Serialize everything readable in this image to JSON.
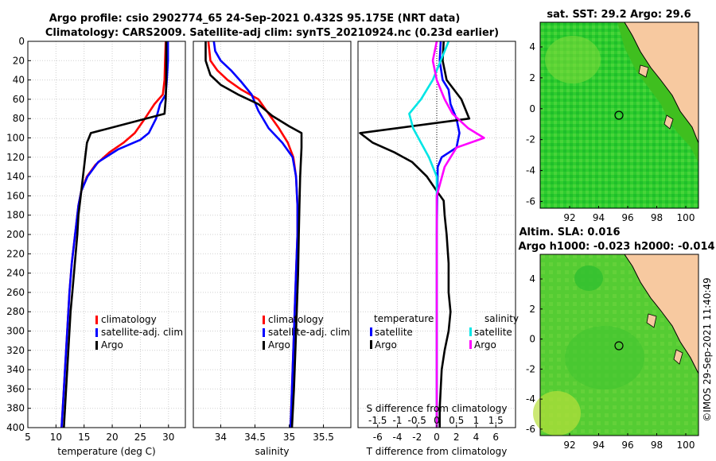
{
  "header": {
    "title_line1": "Argo profile: csio 2902774_65 24-Sep-2021 0.432S 95.175E (NRT data)",
    "title_line2": "Climatology: CARS2009. Satellite-adj clim: synTS_20210924.nc (0.23d earlier)"
  },
  "colors": {
    "climatology": "#ff0000",
    "satellite": "#0000ff",
    "argo": "#000000",
    "s_satellite": "#00e5e5",
    "s_argo": "#ff00ff"
  },
  "chart_data": [
    {
      "id": "temperature",
      "type": "line",
      "xlabel": "temperature (deg C)",
      "ylabel": "",
      "xlim": [
        5,
        33
      ],
      "ylim": [
        400,
        0
      ],
      "xticks": [
        5,
        10,
        15,
        20,
        25,
        30
      ],
      "yticks": [
        0,
        20,
        40,
        60,
        80,
        100,
        120,
        140,
        160,
        180,
        200,
        220,
        240,
        260,
        280,
        300,
        320,
        340,
        360,
        380,
        400
      ],
      "grid": true,
      "legend": {
        "position": "lower-right",
        "entries": [
          "climatology",
          "satellite-adj. clim",
          "Argo"
        ]
      },
      "series": [
        {
          "name": "climatology",
          "color": "#ff0000",
          "points": [
            [
              29.5,
              0
            ],
            [
              29.4,
              20
            ],
            [
              29.3,
              40
            ],
            [
              29.0,
              55
            ],
            [
              27.5,
              65
            ],
            [
              25.8,
              80
            ],
            [
              24.0,
              95
            ],
            [
              22.0,
              105
            ],
            [
              19.5,
              115
            ],
            [
              17.0,
              128
            ],
            [
              15.5,
              140
            ],
            [
              14.5,
              155
            ],
            [
              14.0,
              170
            ],
            [
              13.6,
              190
            ],
            [
              13.2,
              210
            ],
            [
              12.8,
              230
            ],
            [
              12.4,
              260
            ],
            [
              12.2,
              280
            ],
            [
              11.9,
              310
            ],
            [
              11.6,
              340
            ],
            [
              11.3,
              370
            ],
            [
              11.0,
              400
            ]
          ]
        },
        {
          "name": "satellite-adj. clim",
          "color": "#0000ff",
          "points": [
            [
              29.9,
              0
            ],
            [
              29.9,
              20
            ],
            [
              29.7,
              40
            ],
            [
              29.5,
              55
            ],
            [
              28.5,
              65
            ],
            [
              27.8,
              80
            ],
            [
              26.5,
              95
            ],
            [
              25.0,
              102
            ],
            [
              21.0,
              112
            ],
            [
              17.5,
              125
            ],
            [
              15.6,
              140
            ],
            [
              14.5,
              155
            ],
            [
              14.0,
              170
            ],
            [
              13.6,
              190
            ],
            [
              13.2,
              210
            ],
            [
              12.8,
              230
            ],
            [
              12.4,
              260
            ],
            [
              12.2,
              280
            ],
            [
              11.9,
              310
            ],
            [
              11.6,
              340
            ],
            [
              11.3,
              370
            ],
            [
              11.0,
              400
            ]
          ]
        },
        {
          "name": "Argo",
          "color": "#000000",
          "points": [
            [
              29.6,
              0
            ],
            [
              29.6,
              20
            ],
            [
              29.6,
              40
            ],
            [
              29.5,
              60
            ],
            [
              29.3,
              75
            ],
            [
              16.2,
              95
            ],
            [
              15.5,
              105
            ],
            [
              15.2,
              120
            ],
            [
              14.8,
              140
            ],
            [
              14.4,
              160
            ],
            [
              14.0,
              180
            ],
            [
              13.8,
              200
            ],
            [
              13.5,
              220
            ],
            [
              13.2,
              240
            ],
            [
              12.9,
              260
            ],
            [
              12.6,
              280
            ],
            [
              12.3,
              310
            ],
            [
              12.0,
              340
            ],
            [
              11.7,
              370
            ],
            [
              11.4,
              400
            ]
          ]
        }
      ]
    },
    {
      "id": "salinity",
      "type": "line",
      "xlabel": "salinity",
      "ylabel": "",
      "xlim": [
        33.6,
        35.9
      ],
      "ylim": [
        400,
        0
      ],
      "xticks": [
        34,
        34.5,
        35,
        35.5
      ],
      "grid": true,
      "legend": {
        "position": "lower-right",
        "entries": [
          "climatology",
          "satellite-adj. clim",
          "Argo"
        ]
      },
      "series": [
        {
          "name": "climatology",
          "color": "#ff0000",
          "points": [
            [
              33.82,
              0
            ],
            [
              33.85,
              20
            ],
            [
              33.95,
              30
            ],
            [
              34.1,
              40
            ],
            [
              34.3,
              50
            ],
            [
              34.55,
              60
            ],
            [
              34.7,
              75
            ],
            [
              34.85,
              90
            ],
            [
              34.98,
              105
            ],
            [
              35.06,
              120
            ],
            [
              35.1,
              140
            ],
            [
              35.12,
              170
            ],
            [
              35.12,
              200
            ],
            [
              35.1,
              240
            ],
            [
              35.08,
              280
            ],
            [
              35.06,
              320
            ],
            [
              35.04,
              360
            ],
            [
              35.02,
              400
            ]
          ]
        },
        {
          "name": "satellite-adj. clim",
          "color": "#0000ff",
          "points": [
            [
              33.9,
              0
            ],
            [
              33.92,
              10
            ],
            [
              34.0,
              20
            ],
            [
              34.15,
              30
            ],
            [
              34.3,
              42
            ],
            [
              34.45,
              55
            ],
            [
              34.55,
              72
            ],
            [
              34.7,
              90
            ],
            [
              34.9,
              105
            ],
            [
              35.05,
              120
            ],
            [
              35.1,
              140
            ],
            [
              35.12,
              170
            ],
            [
              35.12,
              200
            ],
            [
              35.1,
              240
            ],
            [
              35.08,
              280
            ],
            [
              35.06,
              320
            ],
            [
              35.04,
              360
            ],
            [
              35.02,
              400
            ]
          ]
        },
        {
          "name": "Argo",
          "color": "#000000",
          "points": [
            [
              33.78,
              0
            ],
            [
              33.78,
              20
            ],
            [
              33.85,
              35
            ],
            [
              34.0,
              45
            ],
            [
              34.25,
              55
            ],
            [
              34.55,
              65
            ],
            [
              34.75,
              77
            ],
            [
              35.0,
              88
            ],
            [
              35.18,
              95
            ],
            [
              35.18,
              110
            ],
            [
              35.16,
              140
            ],
            [
              35.15,
              170
            ],
            [
              35.14,
              200
            ],
            [
              35.13,
              240
            ],
            [
              35.11,
              280
            ],
            [
              35.09,
              320
            ],
            [
              35.07,
              360
            ],
            [
              35.04,
              400
            ]
          ]
        }
      ]
    },
    {
      "id": "difference",
      "type": "line",
      "xlabel": "T difference from climatology",
      "xlabel_top": "S difference from climatology",
      "xlim": [
        -8,
        8
      ],
      "ylim": [
        400,
        0
      ],
      "xticks": [
        -6,
        -4,
        -2,
        0,
        2,
        4,
        6
      ],
      "s_xticks": [
        "-1.5",
        "-1",
        "-0.5",
        "0",
        "0.5",
        "1",
        "1.5"
      ],
      "grid": true,
      "legend": {
        "temperature_header": "temperature",
        "salinity_header": "salinity",
        "entries": [
          "satellite",
          "Argo",
          "satellite",
          "Argo"
        ]
      },
      "series": [
        {
          "name": "T satellite",
          "color": "#0000ff",
          "points": [
            [
              0.4,
              0
            ],
            [
              0.3,
              20
            ],
            [
              0.6,
              40
            ],
            [
              1.2,
              50
            ],
            [
              1.4,
              65
            ],
            [
              2.0,
              80
            ],
            [
              2.3,
              95
            ],
            [
              2.0,
              110
            ],
            [
              0.5,
              120
            ],
            [
              0.1,
              130
            ],
            [
              0.05,
              160
            ],
            [
              0.0,
              200
            ],
            [
              0.0,
              300
            ],
            [
              0.0,
              400
            ]
          ]
        },
        {
          "name": "T Argo",
          "color": "#000000",
          "points": [
            [
              0.7,
              0
            ],
            [
              0.6,
              20
            ],
            [
              1.0,
              40
            ],
            [
              2.5,
              60
            ],
            [
              3.3,
              80
            ],
            [
              -7.8,
              95
            ],
            [
              -6.5,
              105
            ],
            [
              -4.3,
              115
            ],
            [
              -2.5,
              125
            ],
            [
              -1.0,
              140
            ],
            [
              0.0,
              155
            ],
            [
              0.7,
              165
            ],
            [
              0.8,
              180
            ],
            [
              1.0,
              200
            ],
            [
              1.2,
              230
            ],
            [
              1.2,
              260
            ],
            [
              1.4,
              280
            ],
            [
              1.2,
              300
            ],
            [
              0.8,
              320
            ],
            [
              0.5,
              340
            ],
            [
              0.3,
              380
            ],
            [
              0.3,
              400
            ]
          ]
        },
        {
          "name": "S satellite",
          "color": "#00e5e5",
          "points": [
            [
              0.3,
              0
            ],
            [
              0.1,
              20
            ],
            [
              -0.1,
              40
            ],
            [
              -0.4,
              60
            ],
            [
              -0.7,
              75
            ],
            [
              -0.6,
              90
            ],
            [
              -0.4,
              105
            ],
            [
              -0.2,
              120
            ],
            [
              0.0,
              140
            ],
            [
              0.0,
              200
            ],
            [
              0.0,
              400
            ]
          ]
        },
        {
          "name": "S Argo",
          "color": "#ff00ff",
          "points": [
            [
              0.0,
              0
            ],
            [
              -0.1,
              20
            ],
            [
              0.0,
              40
            ],
            [
              0.2,
              60
            ],
            [
              0.4,
              75
            ],
            [
              0.8,
              90
            ],
            [
              1.2,
              100
            ],
            [
              0.5,
              110
            ],
            [
              0.2,
              130
            ],
            [
              0.0,
              160
            ],
            [
              0.0,
              400
            ]
          ]
        }
      ]
    }
  ],
  "maps": {
    "sst": {
      "title": "sat. SST: 29.2 Argo: 29.6",
      "xticks": [
        "92",
        "94",
        "96",
        "98",
        "100"
      ],
      "yticks": [
        "4",
        "2",
        "0",
        "-2",
        "-4",
        "-6"
      ]
    },
    "sla": {
      "title_line1": "Altim. SLA: 0.016",
      "title_line2": "Argo h1000: -0.023 h2000: -0.014",
      "xticks": [
        "92",
        "94",
        "96",
        "98",
        "100"
      ],
      "yticks": [
        "4",
        "2",
        "0",
        "-2",
        "-4",
        "-6"
      ]
    }
  },
  "watermark": "©IMOS 29-Sep-2021 11:40:49"
}
